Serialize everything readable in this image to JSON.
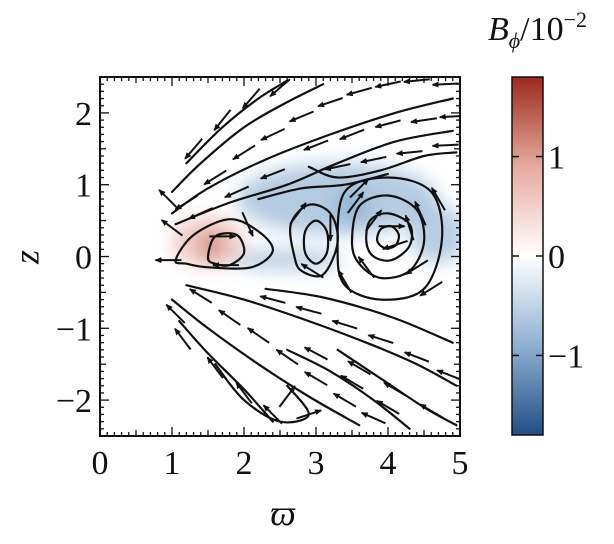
{
  "chart_data": {
    "type": "heatmap",
    "title": "",
    "xlabel": "ϖ",
    "ylabel": "z",
    "xlim": [
      0,
      5
    ],
    "ylim": [
      -2.5,
      2.5
    ],
    "x_ticks": [
      {
        "value": 0,
        "label": "0"
      },
      {
        "value": 1,
        "label": "1"
      },
      {
        "value": 2,
        "label": "2"
      },
      {
        "value": 3,
        "label": "3"
      },
      {
        "value": 4,
        "label": "4"
      },
      {
        "value": 5,
        "label": "5"
      }
    ],
    "y_ticks": [
      {
        "value": 2,
        "label": "2"
      },
      {
        "value": 1,
        "label": "1"
      },
      {
        "value": 0,
        "label": "0"
      },
      {
        "value": -1,
        "label": "−1"
      },
      {
        "value": -2,
        "label": "−2"
      }
    ],
    "colorbar": {
      "quantity": "B",
      "subscript": "ϕ",
      "scale": "/10",
      "exponent": "−2",
      "range": [
        -1.8,
        1.8
      ],
      "colormap": [
        "#1f4f86",
        "#8fb0d2",
        "#ffffff",
        "#e6aaa0",
        "#9c2a1a"
      ],
      "ticks": [
        {
          "value": 1,
          "label": "1"
        },
        {
          "value": 0,
          "label": "0"
        },
        {
          "value": -1,
          "label": "−1"
        }
      ]
    },
    "field_regions": [
      {
        "sign": "positive",
        "x": 1.55,
        "y": 0.15,
        "value": 1.5,
        "rx": 0.12,
        "ry": 0.2
      },
      {
        "sign": "positive",
        "x": 1.5,
        "y": 0.2,
        "value": 0.5,
        "rx": 0.5,
        "ry": 0.35
      },
      {
        "sign": "positive",
        "x": 3.6,
        "y": -0.5,
        "value": 0.4,
        "rx": 1.4,
        "ry": 0.45
      },
      {
        "sign": "positive",
        "x": 4.0,
        "y": 2.2,
        "value": 0.25,
        "rx": 0.7,
        "ry": 0.35
      },
      {
        "sign": "positive",
        "x": 1.8,
        "y": -0.6,
        "value": 0.3,
        "rx": 0.8,
        "ry": 0.3
      },
      {
        "sign": "negative",
        "x": 3.3,
        "y": 0.8,
        "value": -0.6,
        "rx": 1.4,
        "ry": 0.5
      },
      {
        "sign": "negative",
        "x": 2.6,
        "y": -0.05,
        "value": -0.5,
        "rx": 0.8,
        "ry": 0.15
      },
      {
        "sign": "negative",
        "x": 3.5,
        "y": 0.7,
        "value": -0.9,
        "rx": 0.25,
        "ry": 0.25
      },
      {
        "sign": "negative",
        "x": 4.7,
        "y": 0.3,
        "value": -0.5,
        "rx": 0.4,
        "ry": 0.4
      }
    ],
    "streamlines": [
      {
        "id": "loop-inner-small",
        "closed": true,
        "points": [
          [
            1.5,
            -0.02
          ],
          [
            1.6,
            0.28
          ],
          [
            1.9,
            0.3
          ],
          [
            2.0,
            0.05
          ],
          [
            1.8,
            -0.12
          ],
          [
            1.6,
            -0.1
          ]
        ]
      },
      {
        "id": "loop-inner-large",
        "closed": true,
        "points": [
          [
            1.05,
            -0.05
          ],
          [
            1.3,
            0.3
          ],
          [
            1.8,
            0.52
          ],
          [
            2.2,
            0.35
          ],
          [
            2.4,
            0.08
          ],
          [
            2.1,
            -0.15
          ],
          [
            1.5,
            -0.15
          ],
          [
            1.2,
            -0.1
          ]
        ]
      },
      {
        "id": "loop-mid-a",
        "closed": true,
        "points": [
          [
            2.7,
            0.0
          ],
          [
            2.65,
            0.45
          ],
          [
            2.9,
            0.72
          ],
          [
            3.2,
            0.6
          ],
          [
            3.3,
            0.2
          ],
          [
            3.1,
            -0.25
          ],
          [
            2.8,
            -0.2
          ]
        ]
      },
      {
        "id": "loop-mid-b",
        "closed": true,
        "points": [
          [
            2.85,
            0.05
          ],
          [
            2.85,
            0.35
          ],
          [
            3.0,
            0.5
          ],
          [
            3.15,
            0.35
          ],
          [
            3.15,
            0.05
          ],
          [
            3.0,
            -0.1
          ]
        ]
      },
      {
        "id": "loop-big-1",
        "closed": true,
        "points": [
          [
            3.5,
            0.2
          ],
          [
            3.6,
            0.7
          ],
          [
            4.0,
            0.85
          ],
          [
            4.4,
            0.65
          ],
          [
            4.5,
            0.2
          ],
          [
            4.3,
            -0.2
          ],
          [
            3.9,
            -0.3
          ],
          [
            3.6,
            -0.1
          ]
        ]
      },
      {
        "id": "loop-big-2",
        "closed": true,
        "points": [
          [
            3.7,
            0.2
          ],
          [
            3.75,
            0.5
          ],
          [
            4.0,
            0.6
          ],
          [
            4.3,
            0.45
          ],
          [
            4.3,
            0.15
          ],
          [
            4.05,
            -0.05
          ],
          [
            3.8,
            0.0
          ]
        ]
      },
      {
        "id": "loop-big-3",
        "closed": true,
        "points": [
          [
            3.85,
            0.22
          ],
          [
            3.9,
            0.38
          ],
          [
            4.05,
            0.42
          ],
          [
            4.15,
            0.3
          ],
          [
            4.1,
            0.15
          ],
          [
            3.95,
            0.12
          ]
        ]
      },
      {
        "id": "loop-big-outer",
        "closed": true,
        "points": [
          [
            3.3,
            0.1
          ],
          [
            3.4,
            0.9
          ],
          [
            4.0,
            1.1
          ],
          [
            4.6,
            0.9
          ],
          [
            4.75,
            0.25
          ],
          [
            4.5,
            -0.45
          ],
          [
            3.9,
            -0.6
          ],
          [
            3.4,
            -0.4
          ]
        ]
      },
      {
        "id": "upper-1",
        "closed": false,
        "points": [
          [
            1.0,
            0.6
          ],
          [
            1.5,
            0.95
          ],
          [
            2.3,
            1.35
          ],
          [
            3.2,
            1.7
          ],
          [
            4.1,
            2.0
          ],
          [
            4.9,
            2.2
          ]
        ]
      },
      {
        "id": "upper-2",
        "closed": false,
        "points": [
          [
            1.0,
            0.9
          ],
          [
            1.4,
            1.3
          ],
          [
            2.0,
            1.8
          ],
          [
            2.6,
            2.15
          ],
          [
            3.1,
            2.4
          ]
        ]
      },
      {
        "id": "upper-3",
        "closed": false,
        "points": [
          [
            1.05,
            0.45
          ],
          [
            1.8,
            0.75
          ],
          [
            2.6,
            1.0
          ],
          [
            3.3,
            1.3
          ],
          [
            4.1,
            1.6
          ],
          [
            4.9,
            1.75
          ]
        ]
      },
      {
        "id": "upper-4",
        "closed": false,
        "points": [
          [
            1.2,
            1.3
          ],
          [
            1.7,
            1.8
          ],
          [
            2.2,
            2.2
          ],
          [
            2.6,
            2.45
          ]
        ]
      },
      {
        "id": "upper-5",
        "closed": false,
        "points": [
          [
            2.9,
            1.25
          ],
          [
            3.3,
            1.1
          ],
          [
            3.9,
            1.2
          ],
          [
            4.5,
            1.4
          ],
          [
            4.95,
            1.45
          ]
        ]
      },
      {
        "id": "upper-6",
        "closed": false,
        "points": [
          [
            2.2,
            0.8
          ],
          [
            2.8,
            0.95
          ],
          [
            3.4,
            1.0
          ],
          [
            4.0,
            1.15
          ]
        ]
      },
      {
        "id": "lower-1",
        "closed": false,
        "points": [
          [
            1.0,
            -0.6
          ],
          [
            1.5,
            -1.0
          ],
          [
            2.2,
            -1.5
          ],
          [
            2.9,
            -1.95
          ],
          [
            3.6,
            -2.35
          ]
        ]
      },
      {
        "id": "lower-2",
        "closed": false,
        "points": [
          [
            1.1,
            -0.9
          ],
          [
            1.5,
            -1.35
          ],
          [
            2.0,
            -1.85
          ],
          [
            2.4,
            -2.3
          ]
        ]
      },
      {
        "id": "lower-3",
        "closed": false,
        "points": [
          [
            1.2,
            -0.4
          ],
          [
            2.0,
            -0.6
          ],
          [
            2.9,
            -0.9
          ],
          [
            3.7,
            -1.2
          ],
          [
            4.4,
            -1.5
          ],
          [
            4.95,
            -1.8
          ]
        ]
      },
      {
        "id": "lower-4",
        "closed": false,
        "points": [
          [
            1.6,
            -1.5
          ],
          [
            2.0,
            -2.0
          ],
          [
            2.5,
            -2.3
          ],
          [
            2.9,
            -2.2
          ],
          [
            2.6,
            -1.8
          ]
        ]
      },
      {
        "id": "lower-5",
        "closed": false,
        "points": [
          [
            2.3,
            -0.45
          ],
          [
            3.0,
            -0.55
          ],
          [
            3.6,
            -0.7
          ],
          [
            4.2,
            -0.9
          ],
          [
            4.9,
            -1.2
          ]
        ]
      },
      {
        "id": "lower-6",
        "closed": false,
        "points": [
          [
            3.3,
            -1.3
          ],
          [
            3.9,
            -1.7
          ],
          [
            4.5,
            -2.1
          ],
          [
            4.95,
            -2.35
          ]
        ]
      },
      {
        "id": "lower-7",
        "closed": false,
        "points": [
          [
            2.6,
            -1.3
          ],
          [
            3.2,
            -1.6
          ],
          [
            3.8,
            -2.0
          ],
          [
            4.3,
            -2.4
          ]
        ]
      }
    ],
    "arrows": [
      [
        1.2,
        0.75,
        -0.8,
        -0.5
      ],
      [
        1.6,
        1.1,
        -0.8,
        -0.5
      ],
      [
        2.0,
        1.45,
        -0.8,
        -0.5
      ],
      [
        2.4,
        1.7,
        -0.85,
        -0.4
      ],
      [
        2.8,
        1.95,
        -0.85,
        -0.35
      ],
      [
        3.2,
        2.15,
        -0.9,
        -0.3
      ],
      [
        3.6,
        2.3,
        -0.9,
        -0.25
      ],
      [
        4.0,
        2.4,
        -0.95,
        -0.2
      ],
      [
        4.4,
        2.45,
        -1,
        -0.1
      ],
      [
        4.8,
        2.4,
        -1,
        -0.05
      ],
      [
        1.3,
        1.5,
        -0.6,
        -0.7
      ],
      [
        1.7,
        1.9,
        -0.6,
        -0.75
      ],
      [
        2.1,
        2.2,
        -0.6,
        -0.7
      ],
      [
        2.5,
        2.35,
        -0.7,
        -0.6
      ],
      [
        3.0,
        1.55,
        -0.9,
        -0.35
      ],
      [
        3.5,
        1.7,
        -0.9,
        -0.35
      ],
      [
        4.0,
        1.85,
        -0.95,
        -0.25
      ],
      [
        4.5,
        1.9,
        -1,
        -0.15
      ],
      [
        4.9,
        1.95,
        -1,
        -0.05
      ],
      [
        3.3,
        1.25,
        -0.95,
        -0.2
      ],
      [
        3.8,
        1.35,
        -0.95,
        -0.2
      ],
      [
        4.3,
        1.45,
        -1,
        -0.1
      ],
      [
        4.8,
        1.55,
        -1,
        -0.05
      ],
      [
        2.4,
        1.15,
        -0.9,
        -0.35
      ],
      [
        1.9,
        0.9,
        -0.9,
        -0.4
      ],
      [
        1.4,
        0.6,
        -0.9,
        -0.4
      ],
      [
        0.95,
        -0.05,
        -1,
        0.0
      ],
      [
        1.0,
        0.4,
        -0.8,
        0.6
      ],
      [
        0.95,
        0.8,
        -0.7,
        0.7
      ],
      [
        1.05,
        -0.8,
        -0.7,
        0.7
      ],
      [
        1.15,
        -1.15,
        -0.6,
        0.8
      ],
      [
        1.4,
        -0.55,
        -0.8,
        0.5
      ],
      [
        1.8,
        -0.85,
        -0.8,
        0.55
      ],
      [
        2.2,
        -1.1,
        -0.8,
        0.55
      ],
      [
        2.6,
        -1.4,
        -0.8,
        0.55
      ],
      [
        3.0,
        -1.7,
        -0.85,
        0.5
      ],
      [
        3.4,
        -2.0,
        -0.85,
        0.5
      ],
      [
        3.8,
        -2.25,
        -0.9,
        0.4
      ],
      [
        1.6,
        -1.55,
        -0.6,
        0.8
      ],
      [
        2.0,
        -1.9,
        -0.6,
        0.8
      ],
      [
        2.4,
        -2.2,
        -0.7,
        0.7
      ],
      [
        2.4,
        -0.6,
        -0.95,
        0.25
      ],
      [
        2.9,
        -0.75,
        -0.95,
        0.25
      ],
      [
        3.4,
        -0.95,
        -0.95,
        0.3
      ],
      [
        3.9,
        -1.15,
        -0.95,
        0.3
      ],
      [
        4.4,
        -1.4,
        -0.9,
        0.35
      ],
      [
        4.85,
        -1.65,
        -0.9,
        0.35
      ],
      [
        3.6,
        -1.55,
        -0.85,
        0.5
      ],
      [
        4.1,
        -1.85,
        -0.85,
        0.5
      ],
      [
        4.6,
        -2.15,
        -0.85,
        0.5
      ],
      [
        3.0,
        -1.35,
        -0.85,
        0.45
      ],
      [
        3.5,
        -1.75,
        -0.85,
        0.5
      ],
      [
        4.0,
        -2.1,
        -0.85,
        0.5
      ],
      [
        2.6,
        -1.95,
        0.6,
        0.8
      ],
      [
        2.9,
        -2.2,
        0.9,
        0.3
      ],
      [
        1.7,
        0.28,
        1,
        0.0
      ],
      [
        2.05,
        0.45,
        0.4,
        -0.9
      ],
      [
        1.75,
        -0.12,
        -1,
        0.0
      ],
      [
        2.75,
        0.6,
        0.6,
        0.8
      ],
      [
        3.2,
        0.4,
        0.0,
        -1
      ],
      [
        2.95,
        -0.2,
        -0.8,
        0.5
      ],
      [
        3.55,
        0.75,
        0.6,
        0.8
      ],
      [
        4.45,
        0.6,
        -0.4,
        0.9
      ],
      [
        4.4,
        -0.15,
        -0.8,
        -0.5
      ],
      [
        3.7,
        -0.15,
        -0.6,
        0.8
      ],
      [
        3.8,
        0.5,
        0.6,
        0.8
      ],
      [
        4.3,
        0.4,
        -0.3,
        0.95
      ],
      [
        4.1,
        0.16,
        -0.9,
        -0.3
      ],
      [
        4.05,
        0.42,
        1,
        0.0
      ],
      [
        3.6,
        0.95,
        0.7,
        0.7
      ],
      [
        4.7,
        0.8,
        -0.5,
        0.85
      ],
      [
        4.6,
        -0.45,
        -0.8,
        -0.5
      ],
      [
        3.4,
        -0.35,
        -0.5,
        0.85
      ]
    ]
  }
}
